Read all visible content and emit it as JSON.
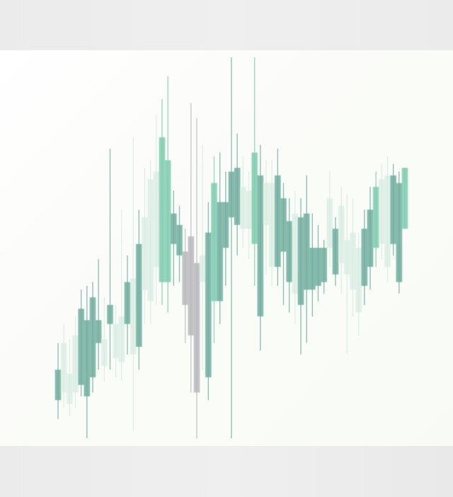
{
  "chart_data": {
    "type": "candlestick",
    "title": "",
    "xlabel": "",
    "ylabel": "",
    "grid": false,
    "legend": "none",
    "ylim": [
      0,
      100
    ],
    "colors": {
      "up": "#7fcdb0",
      "down": "#6fae9f",
      "neutral": "#b9b9bd",
      "pale": "#d7ece2",
      "wick": "#8fbfb1"
    },
    "candles": [
      {
        "open": 10,
        "close": 18,
        "high": 25,
        "low": 5,
        "tone": "down"
      },
      {
        "open": 12,
        "close": 25,
        "high": 30,
        "low": 8,
        "tone": "pale"
      },
      {
        "open": 9,
        "close": 17,
        "high": 26,
        "low": 6,
        "tone": "pale"
      },
      {
        "open": 12,
        "close": 27,
        "high": 32,
        "low": 8,
        "tone": "pale"
      },
      {
        "open": 14,
        "close": 34,
        "high": 39,
        "low": 11,
        "tone": "down"
      },
      {
        "open": 11,
        "close": 31,
        "high": 40,
        "low": 0,
        "tone": "down"
      },
      {
        "open": 16,
        "close": 37,
        "high": 41,
        "low": 12,
        "tone": "down"
      },
      {
        "open": 25,
        "close": 31,
        "high": 47,
        "low": 18,
        "tone": "down"
      },
      {
        "open": 19,
        "close": 26,
        "high": 37,
        "low": 15,
        "tone": "pale"
      },
      {
        "open": 30,
        "close": 35,
        "high": 76,
        "low": 18,
        "tone": "down"
      },
      {
        "open": 21,
        "close": 30,
        "high": 35,
        "low": 16,
        "tone": "pale"
      },
      {
        "open": 20,
        "close": 32,
        "high": 60,
        "low": 15,
        "tone": "pale"
      },
      {
        "open": 30,
        "close": 41,
        "high": 48,
        "low": 22,
        "tone": "down"
      },
      {
        "open": 22,
        "close": 42,
        "high": 79,
        "low": 2,
        "tone": "pale"
      },
      {
        "open": 24,
        "close": 51,
        "high": 60,
        "low": 18,
        "tone": "down"
      },
      {
        "open": 39,
        "close": 58,
        "high": 71,
        "low": 30,
        "tone": "pale"
      },
      {
        "open": 36,
        "close": 68,
        "high": 73,
        "low": 30,
        "tone": "pale"
      },
      {
        "open": 45,
        "close": 70,
        "high": 85,
        "low": 35,
        "tone": "pale"
      },
      {
        "open": 41,
        "close": 79,
        "high": 89,
        "low": 35,
        "tone": "up"
      },
      {
        "open": 41,
        "close": 73,
        "high": 95,
        "low": 33,
        "tone": "up"
      },
      {
        "open": 51,
        "close": 59,
        "high": 65,
        "low": 40,
        "tone": "down"
      },
      {
        "open": 48,
        "close": 56,
        "high": 61,
        "low": 41,
        "tone": "down"
      },
      {
        "open": 35,
        "close": 49,
        "high": 55,
        "low": 25,
        "tone": "neutral"
      },
      {
        "open": 27,
        "close": 53,
        "high": 88,
        "low": 12,
        "tone": "neutral"
      },
      {
        "open": 12,
        "close": 46,
        "high": 84,
        "low": 0,
        "tone": "neutral"
      },
      {
        "open": 41,
        "close": 48,
        "high": 77,
        "low": 18,
        "tone": "pale"
      },
      {
        "open": 16,
        "close": 54,
        "high": 62,
        "low": 10,
        "tone": "down"
      },
      {
        "open": 36,
        "close": 67,
        "high": 74,
        "low": 25,
        "tone": "up"
      },
      {
        "open": 36,
        "close": 62,
        "high": 75,
        "low": 30,
        "tone": "down"
      },
      {
        "open": 50,
        "close": 62,
        "high": 70,
        "low": 40,
        "tone": "down"
      },
      {
        "open": 58,
        "close": 70,
        "high": 100,
        "low": 0,
        "tone": "down"
      },
      {
        "open": 56,
        "close": 71,
        "high": 80,
        "low": 48,
        "tone": "down"
      },
      {
        "open": 55,
        "close": 66,
        "high": 74,
        "low": 50,
        "tone": "pale"
      },
      {
        "open": 55,
        "close": 65,
        "high": 70,
        "low": 47,
        "tone": "pale"
      },
      {
        "open": 51,
        "close": 75,
        "high": 100,
        "low": 40,
        "tone": "up"
      },
      {
        "open": 32,
        "close": 69,
        "high": 77,
        "low": 23,
        "tone": "down"
      },
      {
        "open": 56,
        "close": 67,
        "high": 73,
        "low": 43,
        "tone": "pale"
      },
      {
        "open": 45,
        "close": 67,
        "high": 73,
        "low": 40,
        "tone": "pale"
      },
      {
        "open": 45,
        "close": 69,
        "high": 76,
        "low": 40,
        "tone": "down"
      },
      {
        "open": 49,
        "close": 63,
        "high": 67,
        "low": 35,
        "tone": "down"
      },
      {
        "open": 41,
        "close": 57,
        "high": 63,
        "low": 33,
        "tone": "down"
      },
      {
        "open": 38,
        "close": 59,
        "high": 65,
        "low": 30,
        "tone": "pale"
      },
      {
        "open": 35,
        "close": 58,
        "high": 63,
        "low": 22,
        "tone": "down"
      },
      {
        "open": 39,
        "close": 59,
        "high": 69,
        "low": 25,
        "tone": "down"
      },
      {
        "open": 39,
        "close": 50,
        "high": 59,
        "low": 32,
        "tone": "down"
      },
      {
        "open": 40,
        "close": 50,
        "high": 56,
        "low": 36,
        "tone": "down"
      },
      {
        "open": 41,
        "close": 50,
        "high": 52,
        "low": 38,
        "tone": "down"
      },
      {
        "open": 50,
        "close": 63,
        "high": 70,
        "low": 45,
        "tone": "pale"
      },
      {
        "open": 43,
        "close": 55,
        "high": 58,
        "low": 40,
        "tone": "down"
      },
      {
        "open": 46,
        "close": 61,
        "high": 66,
        "low": 38,
        "tone": "pale"
      },
      {
        "open": 43,
        "close": 52,
        "high": 64,
        "low": 22,
        "tone": "pale"
      },
      {
        "open": 39,
        "close": 54,
        "high": 63,
        "low": 32,
        "tone": "pale"
      },
      {
        "open": 33,
        "close": 50,
        "high": 54,
        "low": 27,
        "tone": "pale"
      },
      {
        "open": 40,
        "close": 55,
        "high": 60,
        "low": 35,
        "tone": "down"
      },
      {
        "open": 45,
        "close": 60,
        "high": 66,
        "low": 39,
        "tone": "down"
      },
      {
        "open": 50,
        "close": 66,
        "high": 70,
        "low": 45,
        "tone": "up"
      },
      {
        "open": 51,
        "close": 68,
        "high": 72,
        "low": 47,
        "tone": "pale"
      },
      {
        "open": 45,
        "close": 69,
        "high": 74,
        "low": 41,
        "tone": "pale"
      },
      {
        "open": 51,
        "close": 69,
        "high": 72,
        "low": 48,
        "tone": "down"
      },
      {
        "open": 41,
        "close": 67,
        "high": 70,
        "low": 38,
        "tone": "down"
      },
      {
        "open": 55,
        "close": 71,
        "high": 71,
        "low": 55,
        "tone": "up"
      }
    ]
  }
}
